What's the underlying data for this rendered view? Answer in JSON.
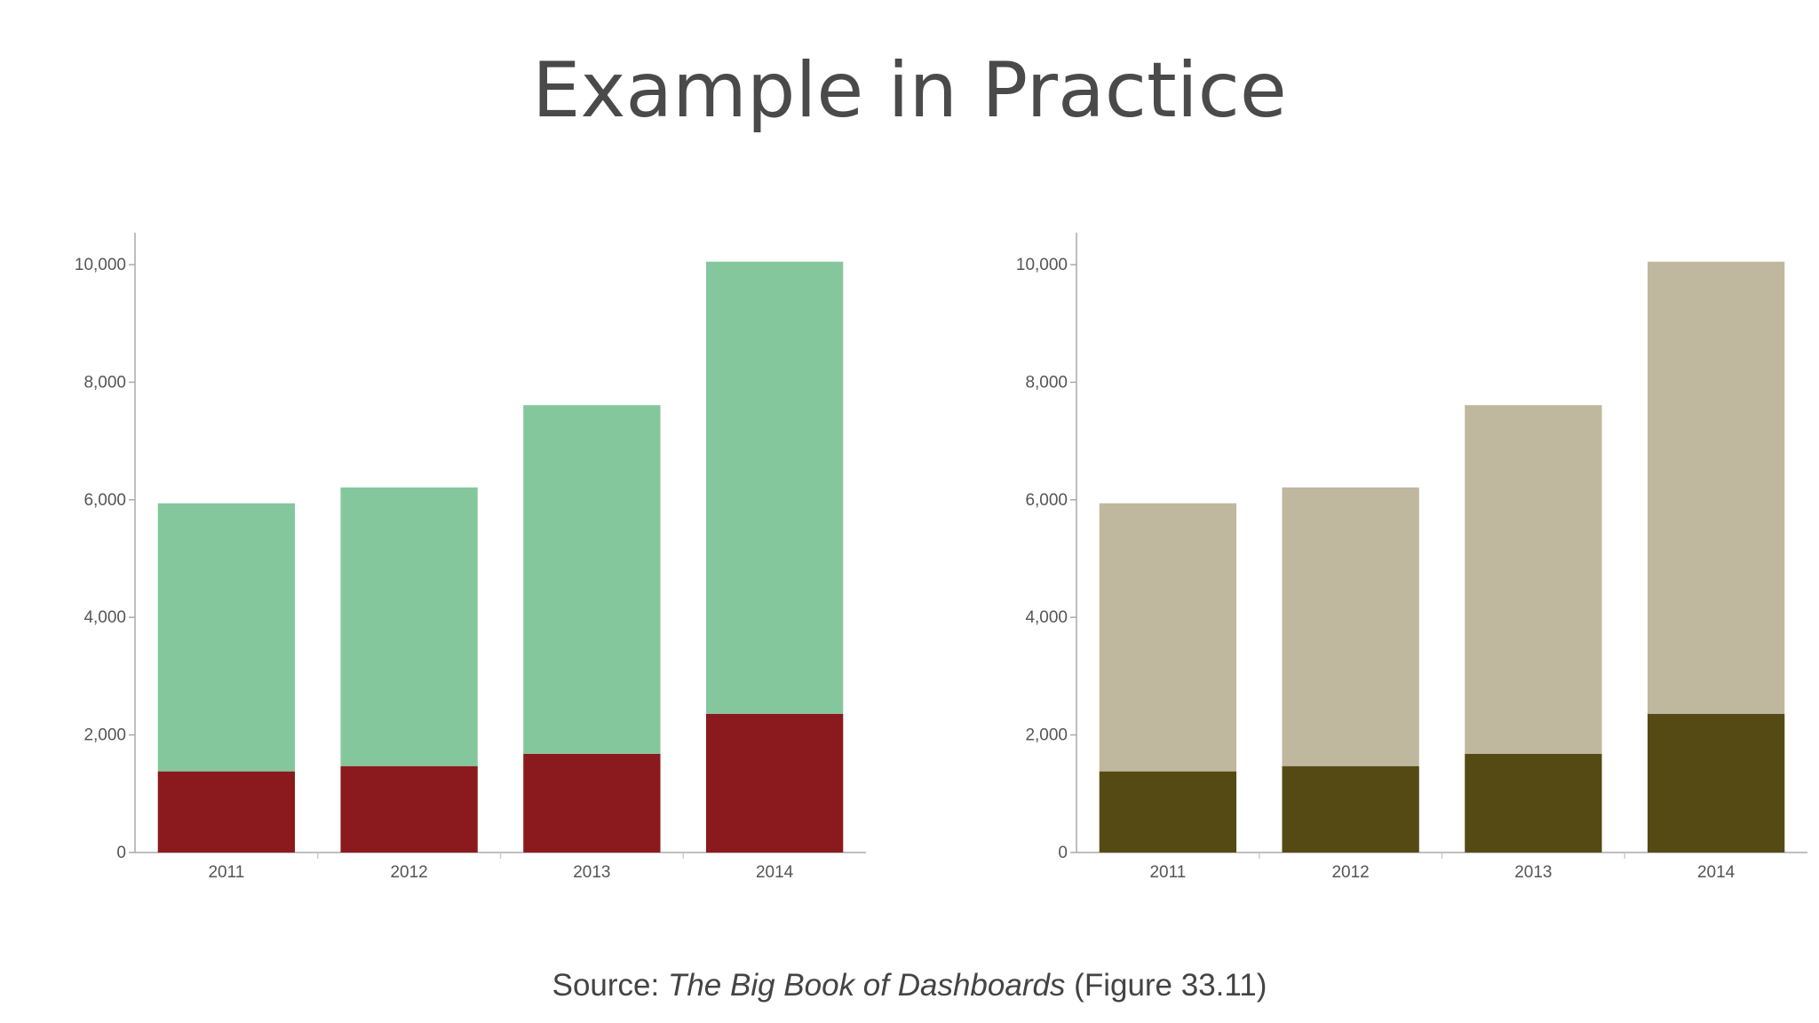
{
  "title": "Example in Practice",
  "source": {
    "prefix": "Source: ",
    "book": "The Big Book of Dashboards",
    "suffix": " (Figure 33.11)"
  },
  "chart_data": [
    {
      "type": "bar",
      "stacked": true,
      "categories": [
        "2011",
        "2012",
        "2013",
        "2014"
      ],
      "series": [
        {
          "values": [
            1380,
            1470,
            1680,
            2360
          ],
          "color": "#8a1a1d"
        },
        {
          "values": [
            4560,
            4740,
            5930,
            7690
          ],
          "color": "#85c79c"
        }
      ],
      "ylim": [
        0,
        10500
      ],
      "yticks": [
        0,
        2000,
        4000,
        6000,
        8000,
        10000
      ],
      "ytick_labels": [
        "0",
        "2,000",
        "4,000",
        "6,000",
        "8,000",
        "10,000"
      ],
      "grid": false
    },
    {
      "type": "bar",
      "stacked": true,
      "categories": [
        "2011",
        "2012",
        "2013",
        "2014"
      ],
      "series": [
        {
          "values": [
            1380,
            1470,
            1680,
            2360
          ],
          "color": "#554a14"
        },
        {
          "values": [
            4560,
            4740,
            5930,
            7690
          ],
          "color": "#bfb89e"
        }
      ],
      "ylim": [
        0,
        10500
      ],
      "yticks": [
        0,
        2000,
        4000,
        6000,
        8000,
        10000
      ],
      "ytick_labels": [
        "0",
        "2,000",
        "4,000",
        "6,000",
        "8,000",
        "10,000"
      ],
      "grid": false
    }
  ]
}
